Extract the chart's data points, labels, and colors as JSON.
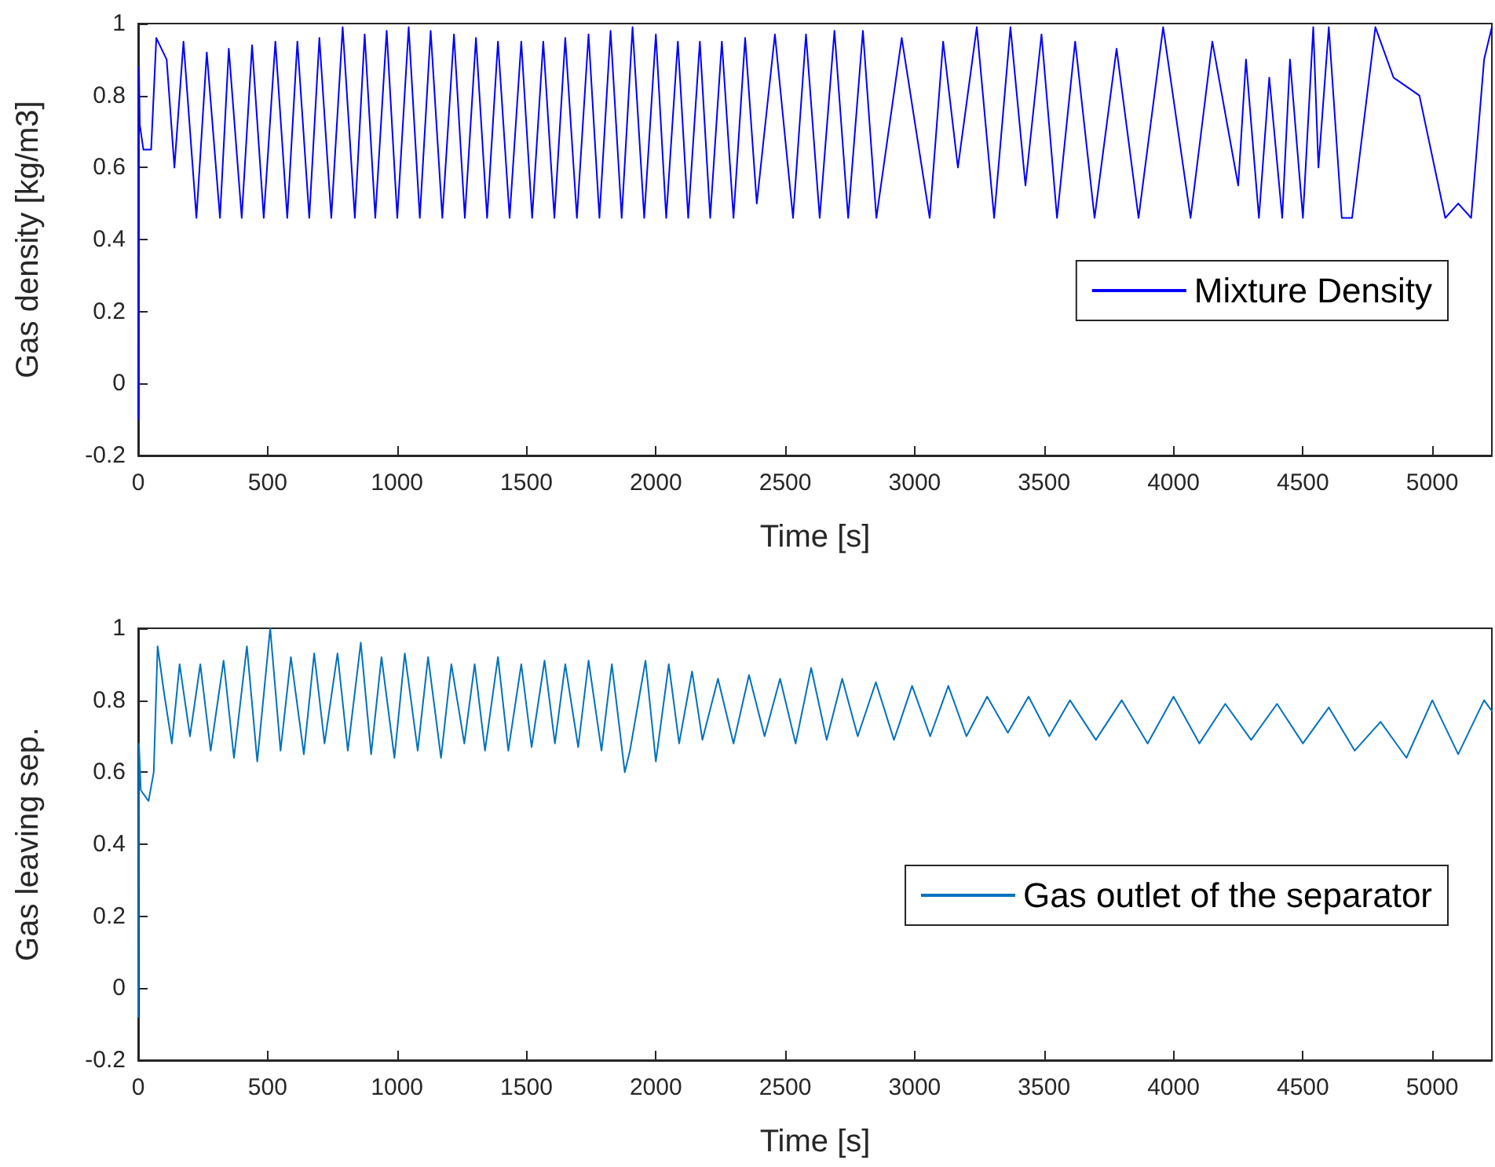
{
  "chart_data": [
    {
      "type": "line",
      "xlabel": "Time [s]",
      "ylabel": "Gas density [kg/m3]",
      "xlim": [
        0,
        5230
      ],
      "xticks": [
        0,
        500,
        1000,
        1500,
        2000,
        2500,
        3000,
        3500,
        4000,
        4500,
        5000
      ],
      "ylim": [
        -0.2,
        1
      ],
      "yticks": [
        -0.2,
        0,
        0.2,
        0.4,
        0.6,
        0.8,
        1
      ],
      "grid": false,
      "legend": "right",
      "marker": "none",
      "line_style": "solid",
      "series": [
        {
          "name": "Mixture Density",
          "color": "#0000ff",
          "x": [
            0,
            3,
            6,
            20,
            50,
            70,
            110,
            140,
            175,
            225,
            265,
            316,
            350,
            400,
            440,
            485,
            530,
            576,
            615,
            661,
            700,
            746,
            790,
            837,
            875,
            916,
            960,
            1001,
            1045,
            1088,
            1130,
            1175,
            1220,
            1262,
            1305,
            1348,
            1390,
            1435,
            1480,
            1522,
            1565,
            1608,
            1650,
            1695,
            1740,
            1782,
            1825,
            1868,
            1910,
            1955,
            2000,
            2040,
            2085,
            2125,
            2170,
            2210,
            2255,
            2300,
            2345,
            2390,
            2460,
            2530,
            2580,
            2633,
            2690,
            2743,
            2800,
            2852,
            2950,
            3058,
            3110,
            3167,
            3240,
            3307,
            3370,
            3428,
            3490,
            3550,
            3620,
            3695,
            3780,
            3865,
            3960,
            4066,
            4150,
            4250,
            4280,
            4330,
            4370,
            4420,
            4450,
            4500,
            4540,
            4560,
            4600,
            4650,
            4690,
            4780,
            4850,
            4950,
            5050,
            5100,
            5150,
            5200,
            5230
          ],
          "values": [
            -0.1,
            0.88,
            0.72,
            0.65,
            0.65,
            0.96,
            0.9,
            0.6,
            0.95,
            0.46,
            0.92,
            0.46,
            0.93,
            0.46,
            0.94,
            0.46,
            0.95,
            0.46,
            0.95,
            0.46,
            0.96,
            0.46,
            0.99,
            0.46,
            0.97,
            0.46,
            0.98,
            0.46,
            0.99,
            0.46,
            0.98,
            0.46,
            0.97,
            0.46,
            0.96,
            0.46,
            0.95,
            0.46,
            0.95,
            0.46,
            0.95,
            0.46,
            0.96,
            0.46,
            0.97,
            0.46,
            0.98,
            0.46,
            0.99,
            0.46,
            0.97,
            0.46,
            0.95,
            0.46,
            0.95,
            0.46,
            0.95,
            0.46,
            0.96,
            0.5,
            0.97,
            0.46,
            0.97,
            0.46,
            0.98,
            0.46,
            0.98,
            0.46,
            0.96,
            0.46,
            0.95,
            0.6,
            0.99,
            0.46,
            0.99,
            0.55,
            0.97,
            0.46,
            0.95,
            0.46,
            0.93,
            0.46,
            0.99,
            0.46,
            0.95,
            0.55,
            0.9,
            0.46,
            0.85,
            0.46,
            0.9,
            0.46,
            0.99,
            0.6,
            0.99,
            0.46,
            0.46,
            0.99,
            0.85,
            0.8,
            0.46,
            0.5,
            0.46,
            0.9,
            0.99
          ]
        }
      ]
    },
    {
      "type": "line",
      "xlabel": "Time [s]",
      "ylabel": "Gas leaving sep.",
      "xlim": [
        0,
        5230
      ],
      "xticks": [
        0,
        500,
        1000,
        1500,
        2000,
        2500,
        3000,
        3500,
        4000,
        4500,
        5000
      ],
      "ylim": [
        -0.2,
        1
      ],
      "yticks": [
        -0.2,
        0,
        0.2,
        0.4,
        0.6,
        0.8,
        1
      ],
      "grid": false,
      "legend": "right",
      "marker": "none",
      "line_style": "solid",
      "series": [
        {
          "name": "Gas outlet of the separator",
          "color": "#0072bd",
          "x": [
            0,
            3,
            10,
            40,
            60,
            75,
            100,
            130,
            160,
            200,
            240,
            280,
            330,
            370,
            420,
            460,
            510,
            550,
            590,
            640,
            680,
            720,
            770,
            810,
            860,
            900,
            940,
            990,
            1030,
            1080,
            1120,
            1170,
            1210,
            1260,
            1300,
            1340,
            1390,
            1430,
            1480,
            1520,
            1570,
            1610,
            1650,
            1700,
            1740,
            1790,
            1830,
            1880,
            1900,
            1960,
            2000,
            2050,
            2090,
            2140,
            2180,
            2240,
            2300,
            2360,
            2420,
            2480,
            2540,
            2600,
            2660,
            2720,
            2780,
            2850,
            2920,
            2990,
            3060,
            3130,
            3200,
            3280,
            3360,
            3440,
            3520,
            3600,
            3700,
            3800,
            3900,
            4000,
            4100,
            4200,
            4300,
            4400,
            4500,
            4600,
            4700,
            4800,
            4900,
            5000,
            5100,
            5200,
            5230
          ],
          "values": [
            -0.08,
            0.68,
            0.55,
            0.52,
            0.6,
            0.95,
            0.82,
            0.68,
            0.9,
            0.7,
            0.9,
            0.66,
            0.91,
            0.64,
            0.95,
            0.63,
            1.0,
            0.66,
            0.92,
            0.65,
            0.93,
            0.68,
            0.93,
            0.66,
            0.96,
            0.65,
            0.92,
            0.64,
            0.93,
            0.66,
            0.92,
            0.64,
            0.9,
            0.68,
            0.9,
            0.66,
            0.92,
            0.66,
            0.9,
            0.67,
            0.91,
            0.68,
            0.9,
            0.67,
            0.91,
            0.66,
            0.9,
            0.6,
            0.66,
            0.91,
            0.63,
            0.9,
            0.68,
            0.88,
            0.69,
            0.86,
            0.68,
            0.87,
            0.7,
            0.86,
            0.68,
            0.89,
            0.69,
            0.86,
            0.7,
            0.85,
            0.69,
            0.84,
            0.7,
            0.84,
            0.7,
            0.81,
            0.71,
            0.81,
            0.7,
            0.8,
            0.69,
            0.8,
            0.68,
            0.81,
            0.68,
            0.79,
            0.69,
            0.79,
            0.68,
            0.78,
            0.66,
            0.74,
            0.64,
            0.8,
            0.65,
            0.8,
            0.77
          ]
        }
      ]
    }
  ]
}
